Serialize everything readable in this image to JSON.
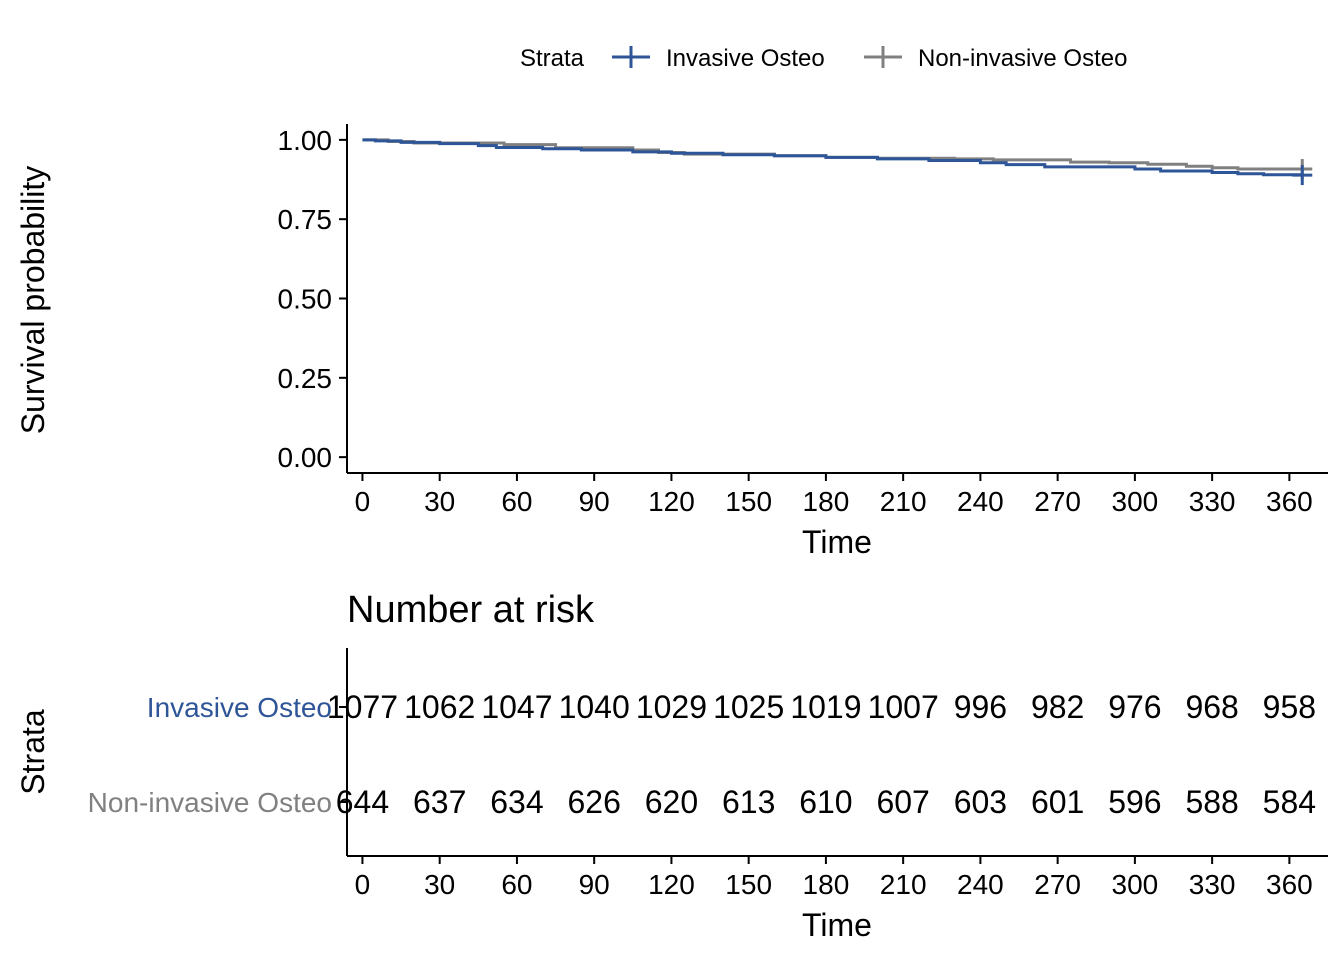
{
  "chart_data": [
    {
      "type": "line",
      "legend": {
        "title": "Strata",
        "position": "top",
        "entries": [
          "Invasive Osteo",
          "Non-invasive Osteo"
        ]
      },
      "xlabel": "Time",
      "ylabel": "Survival probability",
      "xlim": [
        -6,
        375
      ],
      "ylim": [
        -0.05,
        1.05
      ],
      "x_ticks": [
        0,
        30,
        60,
        90,
        120,
        150,
        180,
        210,
        240,
        270,
        300,
        330,
        360
      ],
      "x_tick_labels": [
        "0",
        "30",
        "60",
        "90",
        "120",
        "150",
        "180",
        "210",
        "240",
        "270",
        "300",
        "330",
        "360"
      ],
      "y_ticks": [
        0,
        0.25,
        0.5,
        0.75,
        1.0
      ],
      "y_tick_labels": [
        "0.00",
        "0.25",
        "0.50",
        "0.75",
        "1.00"
      ],
      "series": [
        {
          "name": "Invasive Osteo",
          "color": "#2E5597",
          "steps": [
            [
              0,
              1.0
            ],
            [
              5,
              0.997
            ],
            [
              15,
              0.992
            ],
            [
              30,
              0.988
            ],
            [
              45,
              0.982
            ],
            [
              52,
              0.976
            ],
            [
              70,
              0.972
            ],
            [
              85,
              0.968
            ],
            [
              105,
              0.962
            ],
            [
              120,
              0.958
            ],
            [
              140,
              0.953
            ],
            [
              160,
              0.95
            ],
            [
              180,
              0.945
            ],
            [
              200,
              0.94
            ],
            [
              220,
              0.935
            ],
            [
              240,
              0.928
            ],
            [
              250,
              0.922
            ],
            [
              265,
              0.915
            ],
            [
              300,
              0.908
            ],
            [
              310,
              0.902
            ],
            [
              330,
              0.897
            ],
            [
              340,
              0.893
            ],
            [
              350,
              0.89
            ],
            [
              365,
              0.889
            ]
          ],
          "censor": [
            [
              365,
              0.889
            ]
          ]
        },
        {
          "name": "Non-invasive Osteo",
          "color": "#808080",
          "steps": [
            [
              0,
              1.0
            ],
            [
              10,
              0.995
            ],
            [
              20,
              0.99
            ],
            [
              55,
              0.985
            ],
            [
              75,
              0.975
            ],
            [
              105,
              0.968
            ],
            [
              115,
              0.96
            ],
            [
              125,
              0.955
            ],
            [
              160,
              0.95
            ],
            [
              180,
              0.945
            ],
            [
              200,
              0.942
            ],
            [
              230,
              0.94
            ],
            [
              245,
              0.937
            ],
            [
              275,
              0.93
            ],
            [
              290,
              0.928
            ],
            [
              305,
              0.923
            ],
            [
              320,
              0.917
            ],
            [
              330,
              0.912
            ],
            [
              340,
              0.908
            ],
            [
              365,
              0.908
            ]
          ],
          "censor": [
            [
              365,
              0.908
            ]
          ]
        }
      ]
    },
    {
      "type": "table",
      "title": "Number at risk",
      "xlabel": "Time",
      "ylabel": "Strata",
      "time_points": [
        0,
        30,
        60,
        90,
        120,
        150,
        180,
        210,
        240,
        270,
        300,
        330,
        360
      ],
      "x_tick_labels": [
        "0",
        "30",
        "60",
        "90",
        "120",
        "150",
        "180",
        "210",
        "240",
        "270",
        "300",
        "330",
        "360"
      ],
      "rows": [
        {
          "name": "Invasive Osteo",
          "color": "#2E5597",
          "values": [
            "1077",
            "1062",
            "1047",
            "1040",
            "1029",
            "1025",
            "1019",
            "1007",
            "996",
            "982",
            "976",
            "968",
            "958"
          ]
        },
        {
          "name": "Non-invasive Osteo",
          "color": "#808080",
          "values": [
            "644",
            "637",
            "634",
            "626",
            "620",
            "613",
            "610",
            "607",
            "603",
            "601",
            "596",
            "588",
            "584"
          ]
        }
      ]
    }
  ]
}
